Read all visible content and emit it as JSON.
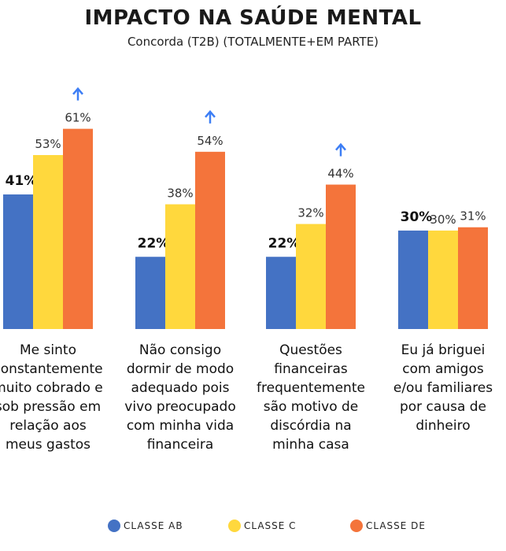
{
  "title": "IMPACTO NA SAÚDE MENTAL",
  "subtitle": "Concorda (T2B) (TOTALMENTE+EM PARTE)",
  "chart_data": {
    "type": "bar",
    "title": "IMPACTO NA SAÚDE MENTAL",
    "subtitle": "Concorda (T2B) (TOTALMENTE+EM PARTE)",
    "categories": [
      "Me sinto constantemente muito cobrado e sob pressão em relação aos meus gastos",
      "Não consigo dormir de modo adequado pois vivo preocupado com minha vida financeira",
      "Questões financeiras frequentemente são motivo de discórdia na minha casa",
      "Eu já briguei com amigos e/ou familiares por causa de dinheiro"
    ],
    "category_lines": [
      [
        "Me sinto",
        "constantemente",
        "muito cobrado e",
        "sob pressão em",
        "relação aos",
        "meus gastos"
      ],
      [
        "Não consigo",
        "dormir de modo",
        "adequado pois",
        "vivo preocupado",
        "com minha vida",
        "financeira"
      ],
      [
        "Questões",
        "financeiras",
        "frequentemente",
        "são motivo de",
        "discórdia na",
        "minha casa"
      ],
      [
        "Eu já briguei",
        "com amigos",
        "e/ou familiares",
        "por causa de",
        "dinheiro"
      ]
    ],
    "series": [
      {
        "name": "CLASSE AB",
        "color": "#4472C4",
        "values": [
          41,
          22,
          22,
          30
        ],
        "labels": [
          "41%",
          "22%",
          "22%",
          "30%"
        ]
      },
      {
        "name": "CLASSE C",
        "color": "#FFD83D",
        "values": [
          53,
          38,
          32,
          30
        ],
        "labels": [
          "53%",
          "38%",
          "32%",
          "30%"
        ]
      },
      {
        "name": "CLASSE DE",
        "color": "#F4743B",
        "values": [
          61,
          54,
          44,
          31
        ],
        "labels": [
          "61%",
          "54%",
          "44%",
          "31%"
        ]
      }
    ],
    "highlight_arrows": [
      true,
      true,
      true,
      false
    ],
    "arrow_color": "#3D7EF5",
    "ylim": [
      0,
      100
    ],
    "grid": false,
    "legend": "bottom"
  }
}
